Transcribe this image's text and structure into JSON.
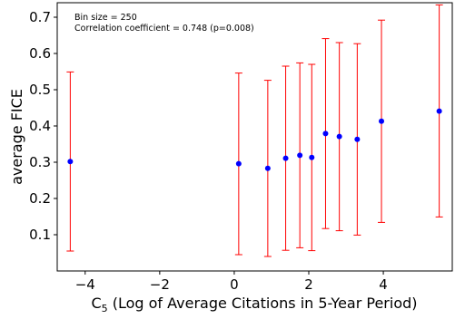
{
  "chart_data": {
    "type": "scatter",
    "title": "",
    "xlabel_sym": "C",
    "xlabel_sub": "5",
    "xlabel_rest": " (Log of Average Citations in 5-Year Period)",
    "ylabel": "average FICE",
    "xlim": [
      -4.75,
      5.85
    ],
    "ylim": [
      0.0,
      0.74
    ],
    "xticks": [
      -4,
      -2,
      0,
      2,
      4
    ],
    "xtick_labels": [
      "−4",
      "−2",
      "0",
      "2",
      "4"
    ],
    "yticks": [
      0.1,
      0.2,
      0.3,
      0.4,
      0.5,
      0.6,
      0.7
    ],
    "ytick_labels": [
      "0.1",
      "0.2",
      "0.3",
      "0.4",
      "0.5",
      "0.6",
      "0.7"
    ],
    "annotations": [
      "Bin size = 250",
      "Correlation coefficient = 0.748 (p=0.008)"
    ],
    "grid": false,
    "point_color": "#0000ff",
    "errorbar_color": "#ff0000",
    "points": [
      {
        "x": -4.4,
        "y": 0.302,
        "low": 0.055,
        "high": 0.549
      },
      {
        "x": 0.12,
        "y": 0.296,
        "low": 0.045,
        "high": 0.546
      },
      {
        "x": 0.9,
        "y": 0.283,
        "low": 0.04,
        "high": 0.526
      },
      {
        "x": 1.38,
        "y": 0.311,
        "low": 0.057,
        "high": 0.565
      },
      {
        "x": 1.76,
        "y": 0.319,
        "low": 0.064,
        "high": 0.574
      },
      {
        "x": 2.08,
        "y": 0.313,
        "low": 0.056,
        "high": 0.57
      },
      {
        "x": 2.45,
        "y": 0.379,
        "low": 0.117,
        "high": 0.641
      },
      {
        "x": 2.82,
        "y": 0.371,
        "low": 0.111,
        "high": 0.63
      },
      {
        "x": 3.3,
        "y": 0.363,
        "low": 0.099,
        "high": 0.627
      },
      {
        "x": 3.95,
        "y": 0.413,
        "low": 0.134,
        "high": 0.692
      },
      {
        "x": 5.5,
        "y": 0.441,
        "low": 0.149,
        "high": 0.734
      }
    ]
  }
}
